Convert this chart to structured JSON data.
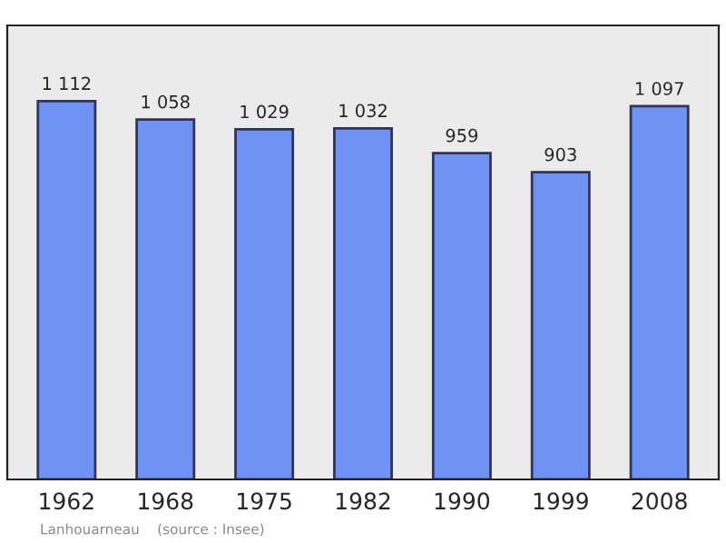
{
  "chart_data": {
    "type": "bar",
    "categories": [
      "1962",
      "1968",
      "1975",
      "1982",
      "1990",
      "1999",
      "2008"
    ],
    "values": [
      1112,
      1058,
      1029,
      1032,
      959,
      903,
      1097
    ],
    "value_labels": [
      "1 112",
      "1 058",
      "1 029",
      "1 032",
      "959",
      "903",
      "1 097"
    ],
    "color": "#6f93f5",
    "annotations": [
      "Lanhouarneau    (source : Insee)"
    ]
  }
}
